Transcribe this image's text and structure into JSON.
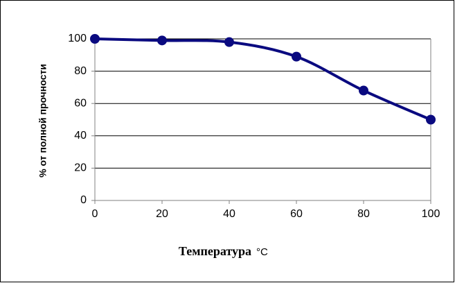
{
  "chart_data": {
    "type": "line",
    "xlabel": "Температура",
    "xlabel_unit": "°C",
    "ylabel": "% от полной прочности",
    "x": [
      0,
      20,
      40,
      60,
      80,
      100
    ],
    "series": [
      {
        "values": [
          100,
          99,
          98,
          89,
          68,
          50
        ]
      }
    ],
    "xlim": [
      0,
      100
    ],
    "ylim": [
      0,
      100
    ],
    "x_ticks": [
      "0",
      "20",
      "40",
      "60",
      "80",
      "100"
    ],
    "y_ticks": [
      "0",
      "20",
      "40",
      "60",
      "80",
      "100"
    ],
    "grid": "horizontal",
    "legend": "none",
    "colors": {
      "line": "#0a0a80",
      "marker": "#0a0a80",
      "grid": "#000000",
      "axis": "#808080",
      "frame": "#000000"
    }
  }
}
